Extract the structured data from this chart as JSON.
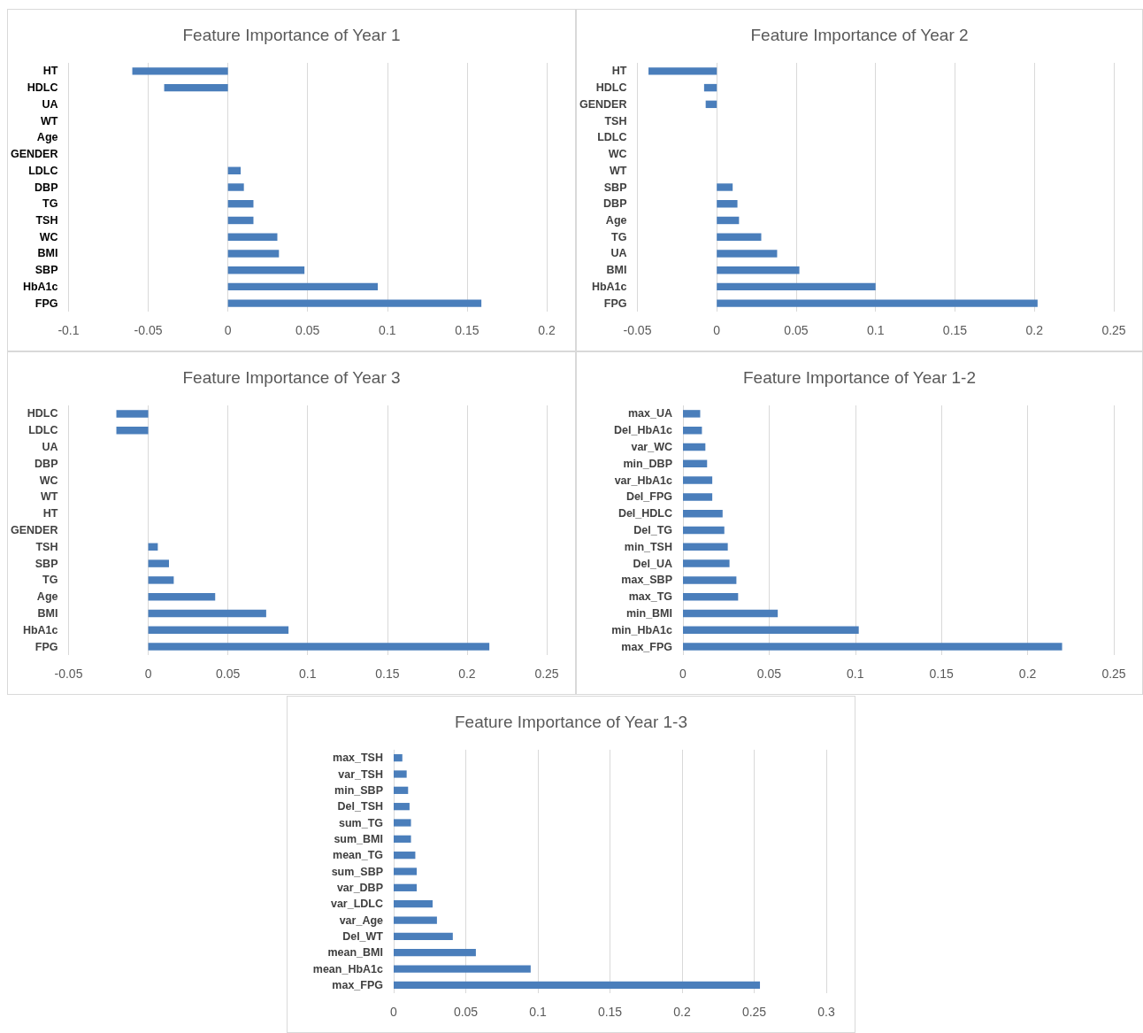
{
  "chart_data": [
    {
      "type": "bar",
      "orientation": "horizontal",
      "title": "Feature Importance of Year 1",
      "categories": [
        "HT",
        "HDLC",
        "UA",
        "WT",
        "Age",
        "GENDER",
        "LDLC",
        "DBP",
        "TG",
        "TSH",
        "WC",
        "BMI",
        "SBP",
        "HbA1c",
        "FPG"
      ],
      "values": [
        -0.06,
        -0.04,
        0,
        0,
        0,
        0,
        0.008,
        0.01,
        0.016,
        0.016,
        0.031,
        0.032,
        0.048,
        0.094,
        0.159
      ],
      "color": "#4a7ebb",
      "xlim": [
        -0.1,
        0.2
      ],
      "xticks": [
        -0.1,
        -0.05,
        0,
        0.05,
        0.1,
        0.15,
        0.2
      ],
      "grid": "x"
    },
    {
      "type": "bar",
      "orientation": "horizontal",
      "title": "Feature Importance of Year 2",
      "categories": [
        "HT",
        "HDLC",
        "GENDER",
        "TSH",
        "LDLC",
        "WC",
        "WT",
        "SBP",
        "DBP",
        "Age",
        "TG",
        "UA",
        "BMI",
        "HbA1c",
        "FPG"
      ],
      "values": [
        -0.043,
        -0.008,
        -0.007,
        0,
        0,
        0,
        0,
        0.01,
        0.013,
        0.014,
        0.028,
        0.038,
        0.052,
        0.1,
        0.202
      ],
      "color": "#4a7ebb",
      "xlim": [
        -0.05,
        0.25
      ],
      "xticks": [
        -0.05,
        0,
        0.05,
        0.1,
        0.15,
        0.2,
        0.25
      ],
      "grid": "x"
    },
    {
      "type": "bar",
      "orientation": "horizontal",
      "title": "Feature Importance of Year 3",
      "categories": [
        "HDLC",
        "LDLC",
        "UA",
        "DBP",
        "WC",
        "WT",
        "HT",
        "GENDER",
        "TSH",
        "SBP",
        "TG",
        "Age",
        "BMI",
        "HbA1c",
        "FPG"
      ],
      "values": [
        -0.02,
        -0.02,
        0,
        0,
        0,
        0,
        0,
        0,
        0.006,
        0.013,
        0.016,
        0.042,
        0.074,
        0.088,
        0.214
      ],
      "color": "#4a7ebb",
      "xlim": [
        -0.05,
        0.25
      ],
      "xticks": [
        -0.05,
        0,
        0.05,
        0.1,
        0.15,
        0.2,
        0.25
      ],
      "grid": "x"
    },
    {
      "type": "bar",
      "orientation": "horizontal",
      "title": "Feature Importance of Year 1-2",
      "categories": [
        "max_UA",
        "Del_HbA1c",
        "var_WC",
        "min_DBP",
        "var_HbA1c",
        "Del_FPG",
        "Del_HDLC",
        "Del_TG",
        "min_TSH",
        "Del_UA",
        "max_SBP",
        "max_TG",
        "min_BMI",
        "min_HbA1c",
        "max_FPG"
      ],
      "values": [
        0.01,
        0.011,
        0.013,
        0.014,
        0.017,
        0.017,
        0.023,
        0.024,
        0.026,
        0.027,
        0.031,
        0.032,
        0.055,
        0.102,
        0.22
      ],
      "color": "#4a7ebb",
      "xlim": [
        0,
        0.25
      ],
      "xticks": [
        0,
        0.05,
        0.1,
        0.15,
        0.2,
        0.25
      ],
      "grid": "x"
    },
    {
      "type": "bar",
      "orientation": "horizontal",
      "title": "Feature Importance of Year 1-3",
      "categories": [
        "max_TSH",
        "var_TSH",
        "min_SBP",
        "Del_TSH",
        "sum_TG",
        "sum_BMI",
        "mean_TG",
        "sum_SBP",
        "var_DBP",
        "var_LDLC",
        "var_Age",
        "Del_WT",
        "mean_BMI",
        "mean_HbA1c",
        "max_FPG"
      ],
      "values": [
        0.006,
        0.009,
        0.01,
        0.011,
        0.012,
        0.012,
        0.015,
        0.016,
        0.016,
        0.027,
        0.03,
        0.041,
        0.057,
        0.095,
        0.254
      ],
      "color": "#4a7ebb",
      "xlim": [
        0,
        0.3
      ],
      "xticks": [
        0,
        0.05,
        0.1,
        0.15,
        0.2,
        0.25,
        0.3
      ],
      "grid": "x"
    }
  ]
}
